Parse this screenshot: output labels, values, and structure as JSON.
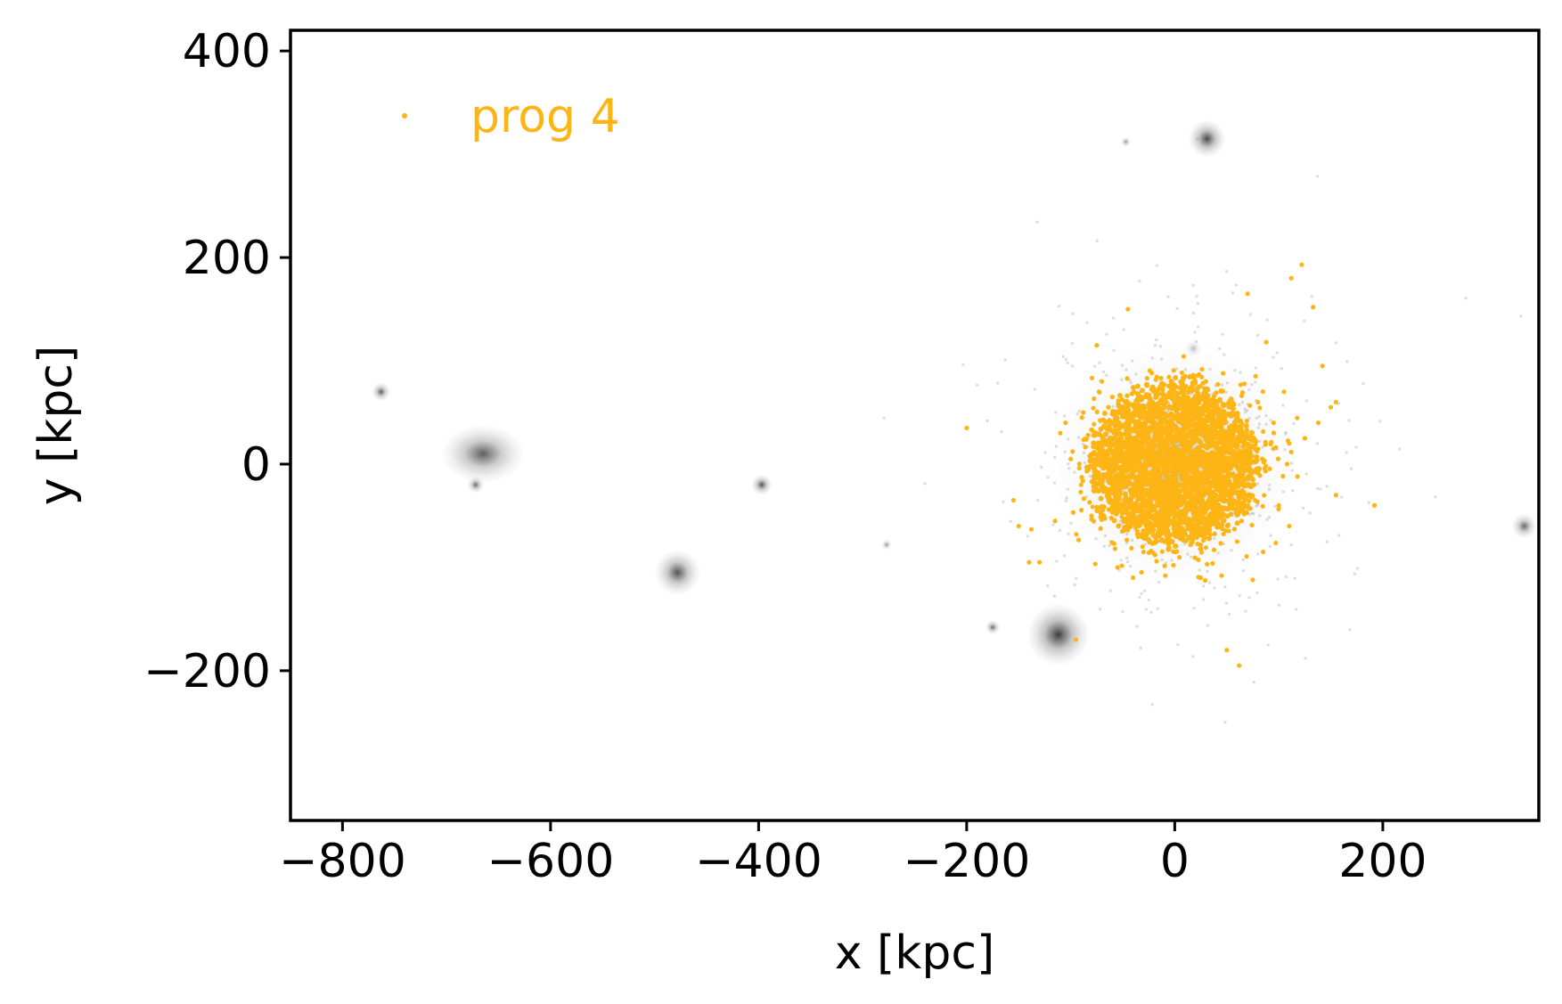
{
  "chart_data": {
    "type": "scatter",
    "xlabel": "x [kpc]",
    "ylabel": "y [kpc]",
    "xlim": [
      -850,
      350
    ],
    "ylim": [
      -345,
      420
    ],
    "xticks": [
      -800,
      -600,
      -400,
      -200,
      0,
      200
    ],
    "yticks": [
      -200,
      0,
      200,
      400
    ],
    "xtick_labels": [
      "−800",
      "−600",
      "−400",
      "−200",
      "0",
      "200"
    ],
    "ytick_labels": [
      "−200",
      "0",
      "200",
      "400"
    ],
    "grid": false,
    "legend": {
      "position": "top-left",
      "entries": [
        {
          "label": "prog 4",
          "color": "#FDB515"
        }
      ]
    },
    "background_density": {
      "colormap": "gray",
      "clumps": [
        {
          "x": 0,
          "y": 0,
          "radius": 120,
          "peak": 0.25
        },
        {
          "x": -665,
          "y": 10,
          "radius": 40,
          "peak": 0.75
        },
        {
          "x": -672,
          "y": -20,
          "radius": 8,
          "peak": 0.7
        },
        {
          "x": -763,
          "y": 70,
          "radius": 9,
          "peak": 0.75
        },
        {
          "x": -478,
          "y": -105,
          "radius": 22,
          "peak": 0.8
        },
        {
          "x": -397,
          "y": -20,
          "radius": 10,
          "peak": 0.8
        },
        {
          "x": -112,
          "y": -165,
          "radius": 30,
          "peak": 0.9
        },
        {
          "x": -175,
          "y": -158,
          "radius": 7,
          "peak": 0.7
        },
        {
          "x": 31,
          "y": 315,
          "radius": 18,
          "peak": 0.85
        },
        {
          "x": -47,
          "y": 312,
          "radius": 5,
          "peak": 0.5
        },
        {
          "x": 336,
          "y": -60,
          "radius": 12,
          "peak": 0.7
        },
        {
          "x": -277,
          "y": -78,
          "radius": 5,
          "peak": 0.5
        },
        {
          "x": 18,
          "y": 112,
          "radius": 8,
          "peak": 0.3
        }
      ]
    },
    "series": [
      {
        "name": "prog 4",
        "color": "#FDB515",
        "core": {
          "x": 0,
          "y": 0,
          "radius": 75
        },
        "points": [
          [
            -200,
            35
          ],
          [
            -45,
            150
          ],
          [
            70,
            165
          ],
          [
            112,
            180
          ],
          [
            122,
            193
          ],
          [
            133,
            152
          ],
          [
            -75,
            115
          ],
          [
            88,
            118
          ],
          [
            142,
            95
          ],
          [
            150,
            55
          ],
          [
            155,
            60
          ],
          [
            138,
            40
          ],
          [
            125,
            25
          ],
          [
            110,
            20
          ],
          [
            95,
            15
          ],
          [
            108,
            0
          ],
          [
            118,
            -12
          ],
          [
            155,
            -30
          ],
          [
            192,
            -40
          ],
          [
            -155,
            -35
          ],
          [
            -150,
            -60
          ],
          [
            -140,
            -95
          ],
          [
            -130,
            -95
          ],
          [
            -95,
            -170
          ],
          [
            -55,
            -100
          ],
          [
            -40,
            -110
          ],
          [
            25,
            -110
          ],
          [
            45,
            -108
          ],
          [
            75,
            -112
          ],
          [
            50,
            -180
          ],
          [
            62,
            -195
          ],
          [
            -80,
            -50
          ],
          [
            -90,
            -20
          ],
          [
            -100,
            5
          ],
          [
            -110,
            30
          ],
          [
            -88,
            50
          ],
          [
            -60,
            65
          ],
          [
            80,
            60
          ],
          [
            95,
            40
          ],
          [
            100,
            -40
          ],
          [
            110,
            -60
          ],
          [
            85,
            -85
          ],
          [
            -30,
            -85
          ],
          [
            10,
            85
          ],
          [
            30,
            80
          ],
          [
            60,
            -75
          ],
          [
            -70,
            80
          ],
          [
            105,
            70
          ],
          [
            -105,
            40
          ],
          [
            -115,
            -55
          ]
        ]
      }
    ]
  }
}
